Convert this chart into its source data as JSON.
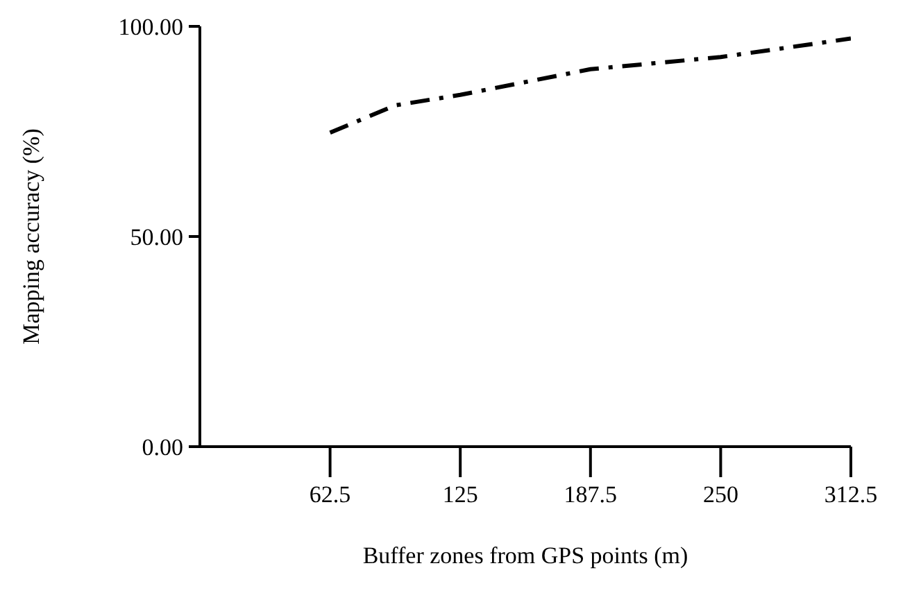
{
  "chart_data": {
    "type": "line",
    "xlabel": "Buffer zones  from GPS points (m)",
    "ylabel": "Mapping accuracy (%)",
    "xlim": [
      0,
      312.5
    ],
    "xticks": [
      62.5,
      125,
      187.5,
      250,
      312.5
    ],
    "ylim": [
      0,
      100
    ],
    "yticks": [
      {
        "value": 0,
        "label": "0.00"
      },
      {
        "value": 50,
        "label": "50.00"
      },
      {
        "value": 100,
        "label": "100.00"
      }
    ],
    "grid": false,
    "legend": false,
    "marker": "none",
    "line_style": "dashed",
    "series": [
      {
        "color": "#000000",
        "x": [
          62.5,
          93.75,
          125,
          187.5,
          250,
          312.5
        ],
        "values": [
          74.7,
          81.2,
          83.7,
          89.8,
          92.7,
          97.1
        ]
      }
    ]
  }
}
